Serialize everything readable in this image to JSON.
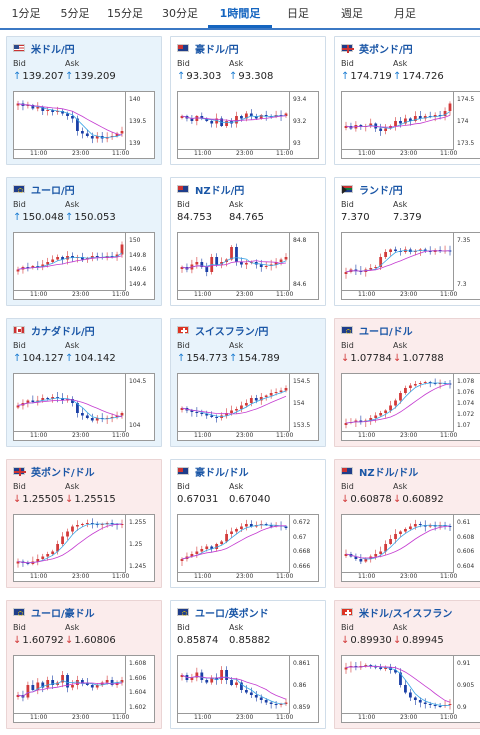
{
  "tabs": [
    {
      "label": "1分足",
      "active": false
    },
    {
      "label": "5分足",
      "active": false
    },
    {
      "label": "15分足",
      "active": false
    },
    {
      "label": "30分足",
      "active": false
    },
    {
      "label": "1時間足",
      "active": true
    },
    {
      "label": "日足",
      "active": false
    },
    {
      "label": "週足",
      "active": false
    },
    {
      "label": "月足",
      "active": false
    }
  ],
  "labels": {
    "bid": "Bid",
    "ask": "Ask"
  },
  "cards": [
    {
      "title": "米ドル/円",
      "flag": "us",
      "bg": "blue",
      "trend": "up",
      "bid": "139.207",
      "ask": "139.209",
      "y_ticks": [
        "140",
        "139.5",
        "139"
      ],
      "x_ticks": [
        "11:00",
        "23:00",
        "11:00"
      ]
    },
    {
      "title": "豪ドル/円",
      "flag": "au",
      "bg": "white",
      "trend": "up",
      "bid": "93.303",
      "ask": "93.308",
      "y_ticks": [
        "93.4",
        "93.2",
        "93"
      ],
      "x_ticks": [
        "11:00",
        "23:00",
        "11:00"
      ]
    },
    {
      "title": "英ポンド/円",
      "flag": "gb",
      "bg": "white",
      "trend": "up",
      "bid": "174.719",
      "ask": "174.726",
      "y_ticks": [
        "174.5",
        "174",
        "173.5"
      ],
      "x_ticks": [
        "11:00",
        "23:00",
        "11:00"
      ]
    },
    {
      "title": "ユーロ/円",
      "flag": "eu",
      "bg": "blue",
      "trend": "up",
      "bid": "150.048",
      "ask": "150.053",
      "y_ticks": [
        "150",
        "149.8",
        "149.6",
        "149.4"
      ],
      "x_ticks": [
        "11:00",
        "23:00",
        "11:00"
      ]
    },
    {
      "title": "NZドル/円",
      "flag": "nz",
      "bg": "white",
      "trend": "none",
      "bid": "84.753",
      "ask": "84.765",
      "y_ticks": [
        "84.8",
        "84.6"
      ],
      "x_ticks": [
        "11:00",
        "23:00",
        "11:00"
      ]
    },
    {
      "title": "ランド/円",
      "flag": "za",
      "bg": "white",
      "trend": "none",
      "bid": "7.370",
      "ask": "7.379",
      "y_ticks": [
        "7.35",
        "7.3"
      ],
      "x_ticks": [
        "11:00",
        "23:00",
        "11:00"
      ]
    },
    {
      "title": "カナダドル/円",
      "flag": "ca",
      "bg": "blue",
      "trend": "up",
      "bid": "104.127",
      "ask": "104.142",
      "y_ticks": [
        "104.5",
        "104"
      ],
      "x_ticks": [
        "11:00",
        "23:00",
        "11:00"
      ]
    },
    {
      "title": "スイスフラン/円",
      "flag": "ch",
      "bg": "blue",
      "trend": "up",
      "bid": "154.773",
      "ask": "154.789",
      "y_ticks": [
        "154.5",
        "154",
        "153.5"
      ],
      "x_ticks": [
        "11:00",
        "23:00",
        "11:00"
      ]
    },
    {
      "title": "ユーロ/ドル",
      "flag": "eu",
      "bg": "pink",
      "trend": "down",
      "bid": "1.07784",
      "ask": "1.07788",
      "y_ticks": [
        "1.078",
        "1.076",
        "1.074",
        "1.072",
        "1.07"
      ],
      "x_ticks": [
        "11:00",
        "23:00",
        "11:00"
      ]
    },
    {
      "title": "英ポンド/ドル",
      "flag": "gb",
      "bg": "pink",
      "trend": "down",
      "bid": "1.25505",
      "ask": "1.25515",
      "y_ticks": [
        "1.255",
        "1.25",
        "1.245"
      ],
      "x_ticks": [
        "11:00",
        "23:00",
        "11:00"
      ]
    },
    {
      "title": "豪ドル/ドル",
      "flag": "au",
      "bg": "white",
      "trend": "none",
      "bid": "0.67031",
      "ask": "0.67040",
      "y_ticks": [
        "0.672",
        "0.67",
        "0.668",
        "0.666"
      ],
      "x_ticks": [
        "11:00",
        "23:00",
        "11:00"
      ]
    },
    {
      "title": "NZドル/ドル",
      "flag": "nz",
      "bg": "pink",
      "trend": "down",
      "bid": "0.60878",
      "ask": "0.60892",
      "y_ticks": [
        "0.61",
        "0.608",
        "0.606",
        "0.604"
      ],
      "x_ticks": [
        "11:00",
        "23:00",
        "11:00"
      ]
    },
    {
      "title": "ユーロ/豪ドル",
      "flag": "eu",
      "bg": "pink",
      "trend": "down",
      "bid": "1.60792",
      "ask": "1.60806",
      "y_ticks": [
        "1.608",
        "1.606",
        "1.604",
        "1.602"
      ],
      "x_ticks": [
        "11:00",
        "23:00",
        "11:00"
      ]
    },
    {
      "title": "ユーロ/英ポンド",
      "flag": "eu",
      "bg": "white",
      "trend": "none",
      "bid": "0.85874",
      "ask": "0.85882",
      "y_ticks": [
        "0.861",
        "0.86",
        "0.859"
      ],
      "x_ticks": [
        "11:00",
        "23:00",
        "11:00"
      ]
    },
    {
      "title": "米ドル/スイスフラン",
      "flag": "ch",
      "bg": "pink",
      "trend": "down",
      "bid": "0.89930",
      "ask": "0.89945",
      "y_ticks": [
        "0.91",
        "0.905",
        "0.9"
      ],
      "x_ticks": [
        "11:00",
        "23:00",
        "11:00"
      ]
    }
  ],
  "colors": {
    "up": "#1a7bd1",
    "down": "#d23a3a",
    "accent": "#1565c0",
    "candle_up": "#d23a3a",
    "candle_down": "#1a3fa6",
    "ma_long": "#c43bd0",
    "ma_short": "#3aa6e6"
  }
}
